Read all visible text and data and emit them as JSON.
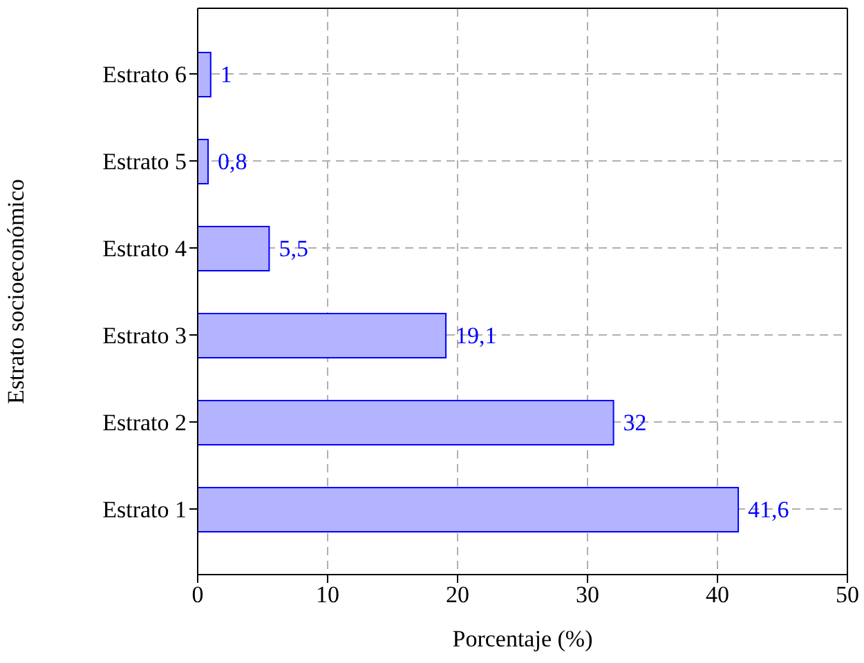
{
  "chart_data": {
    "type": "bar",
    "orientation": "horizontal",
    "xlabel": "Porcentaje (%)",
    "ylabel": "Estrato socioeconómico",
    "categories": [
      "Estrato 6",
      "Estrato 5",
      "Estrato 4",
      "Estrato 3",
      "Estrato 2",
      "Estrato 1"
    ],
    "series": [
      {
        "color": "#b3b3ff",
        "values": [
          1,
          0.8,
          5.5,
          19.1,
          32,
          41.6
        ],
        "value_labels": [
          "1",
          "0,8",
          "5,5",
          "19,1",
          "32",
          "41,6"
        ]
      }
    ],
    "xlim": [
      0,
      50
    ],
    "xticks": [
      0,
      10,
      20,
      30,
      40,
      50
    ],
    "grid": true
  }
}
